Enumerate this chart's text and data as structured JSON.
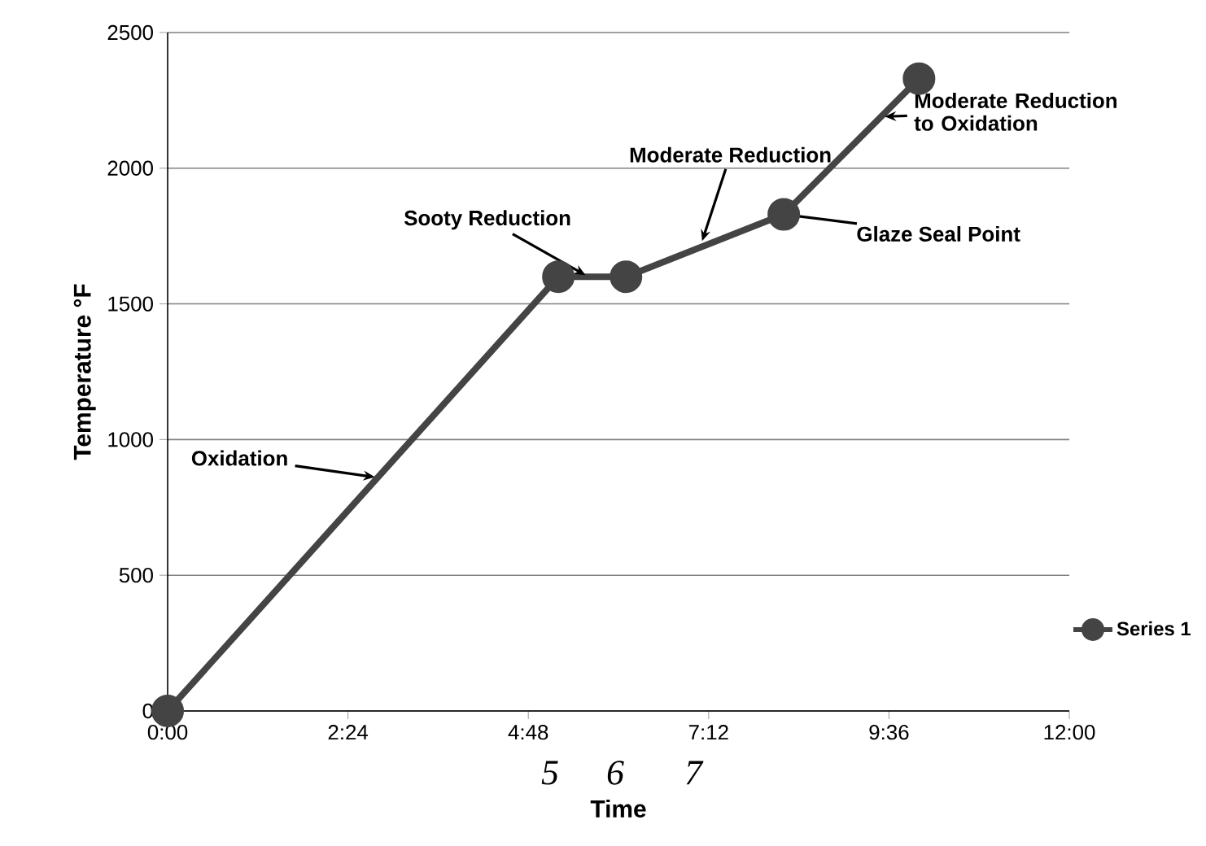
{
  "chart_data": {
    "type": "line",
    "xlabel": "Time",
    "ylabel": "Temperature °F",
    "x": [
      0,
      5.2,
      6.1,
      8.2,
      10
    ],
    "series": [
      {
        "name": "Series 1",
        "color": "#444444",
        "values": [
          0,
          1600,
          1600,
          1830,
          2330
        ]
      }
    ],
    "xlim": [
      0,
      12
    ],
    "xticks": [
      {
        "value": 0,
        "label": "0:00"
      },
      {
        "value": 2.4,
        "label": "2:24"
      },
      {
        "value": 4.8,
        "label": "4:48"
      },
      {
        "value": 7.2,
        "label": "7:12"
      },
      {
        "value": 9.6,
        "label": "9:36"
      },
      {
        "value": 12,
        "label": "12:00"
      }
    ],
    "ylim": [
      0,
      2500
    ],
    "yticks": [
      0,
      500,
      1000,
      1500,
      2000,
      2500
    ],
    "grid": "y",
    "legend": "right",
    "marker": "circle",
    "line_style": "solid",
    "annotations": [
      {
        "text": "Oxidation",
        "x": 2.8,
        "y": 860
      },
      {
        "text": "Sooty Reduction",
        "x": 5.6,
        "y": 1600
      },
      {
        "text": "Moderate Reduction",
        "x": 7.1,
        "y": 1720
      },
      {
        "text": "Glaze Seal Point",
        "x": 8.2,
        "y": 1830
      },
      {
        "text": "Moderate Reduction to Oxidation",
        "x": 9.5,
        "y": 2190
      },
      "5",
      "6",
      "7"
    ]
  }
}
